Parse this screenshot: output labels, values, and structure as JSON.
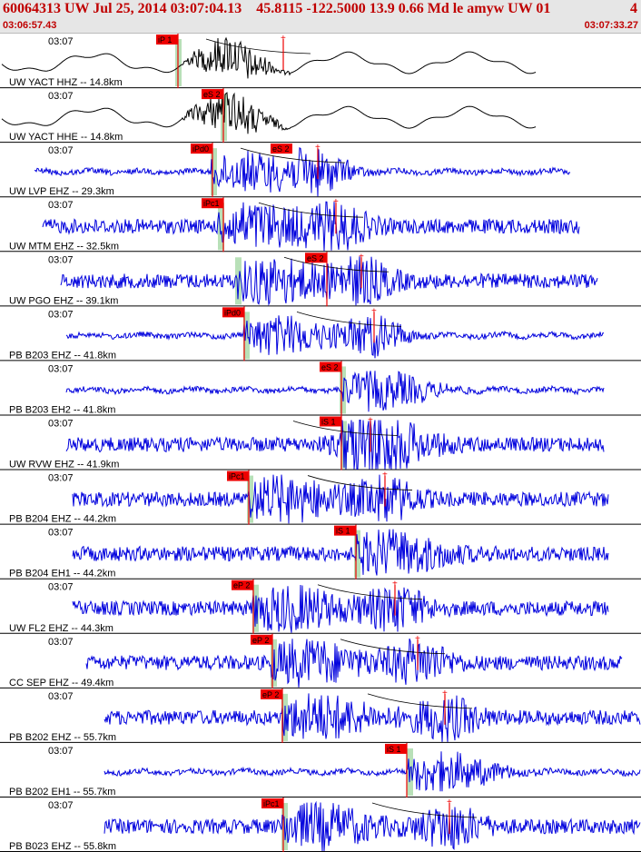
{
  "header": {
    "title": "60064313 UW Jul 25, 2014 03:07:04.13    45.8115 -122.5000 13.9 0.66 Md le amyw UW 01",
    "page_number": "4",
    "start_time": "03:06:57.43",
    "end_time": "03:07:33.27"
  },
  "colors": {
    "header_bg": "#e6e6e6",
    "header_text": "#c00000",
    "trace_black": "#000000",
    "trace_blue": "#0000dd",
    "pick_box": "#ee0000",
    "pick_window": "#b8e0b8",
    "pick_mark": "#ee0000",
    "divider": "#000000"
  },
  "traces": [
    {
      "label": "UW YACT HHZ -- 14.8km",
      "time_label": "03:07",
      "pick": "iP 1",
      "pick2": "",
      "color": "black",
      "style": "rumble"
    },
    {
      "label": "UW YACT HHE -- 14.8km",
      "time_label": "03:07",
      "pick": "eS 2",
      "pick2": "",
      "color": "black",
      "style": "rumble"
    },
    {
      "label": "UW LVP EHZ -- 29.3km",
      "time_label": "03:07",
      "pick": "iPd0",
      "pick2": "eS 2",
      "color": "blue",
      "style": "quiet"
    },
    {
      "label": "UW MTM EHZ -- 32.5km",
      "time_label": "03:07",
      "pick": "iPc1",
      "pick2": "",
      "color": "blue",
      "style": "noisy"
    },
    {
      "label": "UW PGO EHZ -- 39.1km",
      "time_label": "03:07",
      "pick": "eS 2",
      "pick2": "",
      "color": "blue",
      "style": "noisy"
    },
    {
      "label": "PB B203 EHZ -- 41.8km",
      "time_label": "03:07",
      "pick": "iPd0",
      "pick2": "",
      "color": "blue",
      "style": "quiet"
    },
    {
      "label": "PB B203 EH2 -- 41.8km",
      "time_label": "03:07",
      "pick": "eS 2",
      "pick2": "",
      "color": "blue",
      "style": "quiet"
    },
    {
      "label": "UW RVW EHZ -- 41.9km",
      "time_label": "03:07",
      "pick": "iS 1",
      "pick2": "",
      "color": "blue",
      "style": "noisy"
    },
    {
      "label": "PB B204 EHZ -- 44.2km",
      "time_label": "03:07",
      "pick": "iPc1",
      "pick2": "",
      "color": "blue",
      "style": "noisy"
    },
    {
      "label": "PB B204 EH1 -- 44.2km",
      "time_label": "03:07",
      "pick": "iS 1",
      "pick2": "",
      "color": "blue",
      "style": "noisy"
    },
    {
      "label": "UW FL2 EHZ -- 44.3km",
      "time_label": "03:07",
      "pick": "eP 2",
      "pick2": "",
      "color": "blue",
      "style": "noisy"
    },
    {
      "label": "CC SEP EHZ -- 49.4km",
      "time_label": "03:07",
      "pick": "eP 2",
      "pick2": "",
      "color": "blue",
      "style": "noisy"
    },
    {
      "label": "PB B202 EHZ -- 55.7km",
      "time_label": "03:07",
      "pick": "eP 2",
      "pick2": "",
      "color": "blue",
      "style": "noisy"
    },
    {
      "label": "PB B202 EH1 -- 55.7km",
      "time_label": "03:07",
      "pick": "iS 1",
      "pick2": "",
      "color": "blue",
      "style": "quiet"
    },
    {
      "label": "PB B023 EHZ -- 55.8km",
      "time_label": "03:07",
      "pick": "iPc1",
      "pick2": "",
      "color": "blue",
      "style": "noisy"
    }
  ]
}
